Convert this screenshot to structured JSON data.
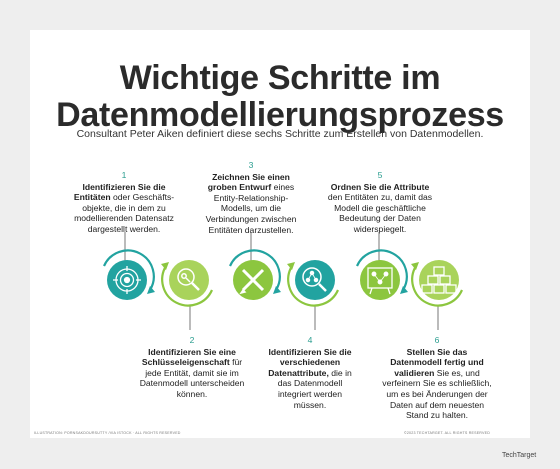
{
  "title_line1": "Wichtige Schritte im",
  "title_line2": "Datenmodellierungsprozess",
  "subtitle": "Consultant Peter Aiken definiert diese sechs Schritte zum Erstellen von Datenmodellen.",
  "colors": {
    "teal": "#22a3a0",
    "green": "#8cc63f",
    "lightgreen": "#a9d35b",
    "number": "#2a9d8f"
  },
  "steps": [
    {
      "num": "1",
      "bold": "Identifizieren Sie die Entitäten",
      "rest": " oder Geschäfts-objekte, die in dem zu modellierenden Datensatz dargestellt werden.",
      "icon": "target-brain-icon"
    },
    {
      "num": "2",
      "bold": "Identifizieren Sie eine Schlüsseleigenschaft",
      "rest": " für jede Entität, damit sie im Datenmodell unterscheiden können.",
      "icon": "magnifier-key-icon"
    },
    {
      "num": "3",
      "bold": "Zeichnen Sie einen groben Entwurf",
      "rest": " eines Entity-Relationship-Modells, um die Verbindungen zwischen Entitäten darzustellen.",
      "icon": "pencil-ruler-icon"
    },
    {
      "num": "4",
      "bold": "Identifizieren Sie die verschiedenen Datenattribute,",
      "rest": " die in das Datenmodell integriert werden müssen.",
      "icon": "magnifier-network-icon"
    },
    {
      "num": "5",
      "bold": "Ordnen Sie die Attribute",
      "rest": " den Entitäten zu, damit das Modell die geschäftliche Bedeutung der Daten widerspiegelt.",
      "icon": "network-board-icon"
    },
    {
      "num": "6",
      "bold": "Stellen Sie das Datenmodell fertig und validieren",
      "rest": " Sie es, und verfeinern Sie es schließlich, um es bei Änderungen der Daten auf dem neuesten Stand zu halten.",
      "icon": "stacked-boxes-icon"
    }
  ],
  "footer_left": "ILLUSTRATION: PORNSAKDOURSUTTY /VIA ISTOCK · ALL RIGHTS RESERVED",
  "footer_right": "©2023 TECHTARGET. ALL RIGHTS RESERVED",
  "brand": "TechTarget"
}
